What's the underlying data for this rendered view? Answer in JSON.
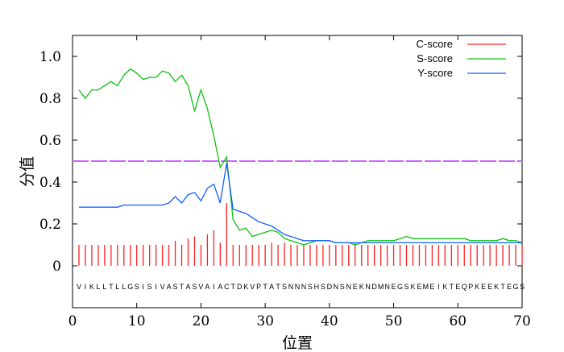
{
  "chart_data": {
    "type": "line",
    "xlabel": "位置",
    "ylabel": "分值",
    "xlim": [
      0,
      70
    ],
    "ylim": [
      -0.2,
      1.1
    ],
    "xticks": [
      0,
      10,
      20,
      30,
      40,
      50,
      60,
      70
    ],
    "yticks": [
      0,
      0.2,
      0.4,
      0.6,
      0.8,
      1.0
    ],
    "ytick_labels": [
      "0",
      "0.2",
      "0.4",
      "0.6",
      "0.8",
      "1.0"
    ],
    "legend_position": "top-right",
    "threshold": 0.5,
    "threshold_color": "#cc66ff",
    "sequence": [
      "V",
      "I",
      "K",
      "L",
      "L",
      "T",
      "L",
      "L",
      "G",
      "S",
      "I",
      "S",
      "I",
      "V",
      "A",
      "S",
      "T",
      "A",
      "S",
      "V",
      "A",
      "I",
      "A",
      "C",
      "T",
      "D",
      "K",
      "V",
      "P",
      "T",
      "A",
      "T",
      "S",
      "N",
      "N",
      "N",
      "S",
      "H",
      "S",
      "D",
      "N",
      "S",
      "N",
      "E",
      "K",
      "N",
      "D",
      "M",
      "N",
      "E",
      "G",
      "S",
      "K",
      "E",
      "M",
      "E",
      "I",
      "K",
      "T",
      "E",
      "Q",
      "P",
      "K",
      "E",
      "E",
      "K",
      "T",
      "E",
      "G",
      "S"
    ],
    "series": [
      {
        "name": "C-score",
        "color": "#ff2020",
        "style": "bars",
        "values": [
          0.1,
          0.1,
          0.1,
          0.1,
          0.1,
          0.1,
          0.1,
          0.1,
          0.1,
          0.1,
          0.1,
          0.1,
          0.1,
          0.1,
          0.1,
          0.12,
          0.1,
          0.13,
          0.14,
          0.1,
          0.15,
          0.17,
          0.11,
          0.3,
          0.1,
          0.1,
          0.1,
          0.1,
          0.1,
          0.1,
          0.11,
          0.1,
          0.11,
          0.1,
          0.1,
          0.1,
          0.1,
          0.1,
          0.1,
          0.1,
          0.1,
          0.1,
          0.1,
          0.11,
          0.1,
          0.1,
          0.1,
          0.1,
          0.1,
          0.1,
          0.1,
          0.1,
          0.1,
          0.1,
          0.1,
          0.1,
          0.1,
          0.1,
          0.1,
          0.1,
          0.1,
          0.1,
          0.1,
          0.1,
          0.1,
          0.1,
          0.1,
          0.1,
          0.1,
          0.1
        ]
      },
      {
        "name": "S-score",
        "color": "#10c010",
        "style": "line",
        "values": [
          0.84,
          0.8,
          0.84,
          0.84,
          0.86,
          0.88,
          0.86,
          0.91,
          0.94,
          0.92,
          0.89,
          0.9,
          0.9,
          0.93,
          0.92,
          0.88,
          0.91,
          0.86,
          0.74,
          0.84,
          0.75,
          0.62,
          0.47,
          0.52,
          0.22,
          0.17,
          0.18,
          0.14,
          0.15,
          0.16,
          0.17,
          0.16,
          0.13,
          0.12,
          0.11,
          0.1,
          0.11,
          0.12,
          0.12,
          0.12,
          0.11,
          0.11,
          0.11,
          0.1,
          0.11,
          0.12,
          0.12,
          0.12,
          0.12,
          0.12,
          0.13,
          0.14,
          0.13,
          0.13,
          0.13,
          0.13,
          0.13,
          0.13,
          0.13,
          0.13,
          0.13,
          0.12,
          0.12,
          0.12,
          0.12,
          0.12,
          0.13,
          0.12,
          0.12,
          0.11
        ]
      },
      {
        "name": "Y-score",
        "color": "#1060ff",
        "style": "line",
        "values": [
          0.28,
          0.28,
          0.28,
          0.28,
          0.28,
          0.28,
          0.28,
          0.29,
          0.29,
          0.29,
          0.29,
          0.29,
          0.29,
          0.29,
          0.3,
          0.33,
          0.3,
          0.34,
          0.35,
          0.31,
          0.37,
          0.39,
          0.3,
          0.49,
          0.27,
          0.26,
          0.25,
          0.23,
          0.21,
          0.2,
          0.19,
          0.17,
          0.15,
          0.14,
          0.13,
          0.12,
          0.12,
          0.12,
          0.12,
          0.12,
          0.11,
          0.11,
          0.11,
          0.11,
          0.11,
          0.11,
          0.11,
          0.11,
          0.11,
          0.11,
          0.11,
          0.11,
          0.11,
          0.11,
          0.11,
          0.11,
          0.11,
          0.11,
          0.11,
          0.11,
          0.11,
          0.11,
          0.11,
          0.11,
          0.11,
          0.11,
          0.11,
          0.11,
          0.11,
          0.11
        ]
      }
    ]
  }
}
